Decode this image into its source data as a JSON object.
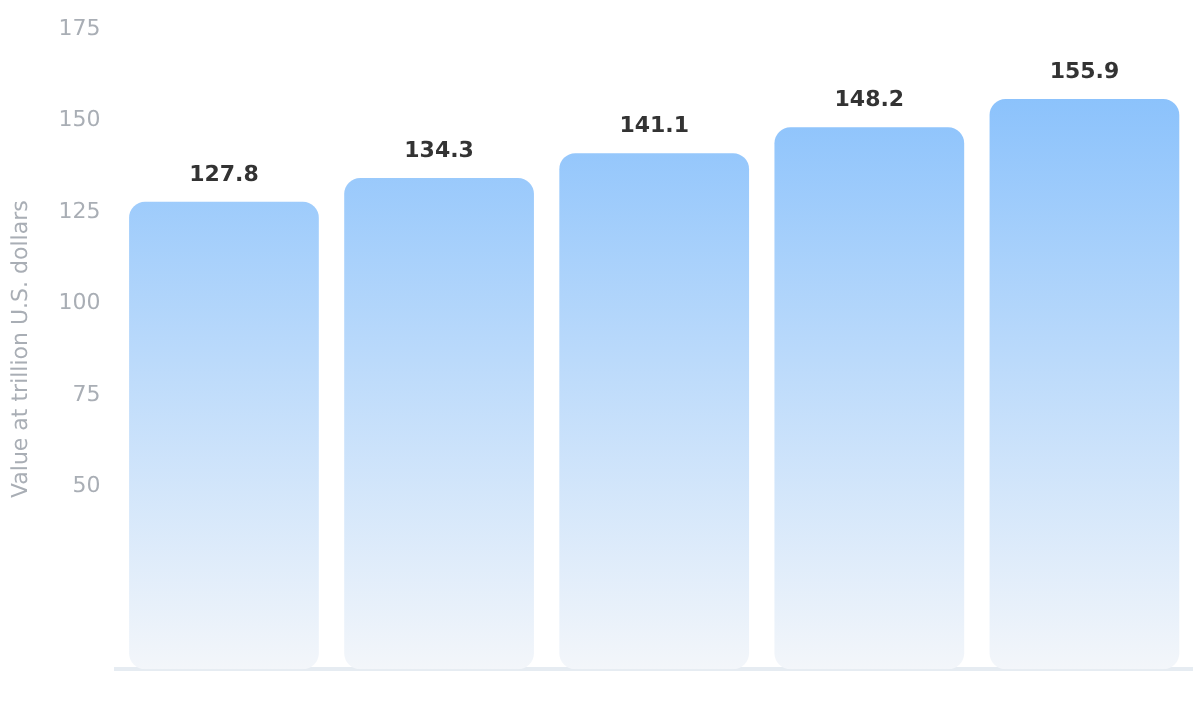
{
  "chart_data": {
    "type": "bar",
    "ylabel": "Value at trillion U.S. dollars",
    "categories": [
      null,
      null,
      null,
      null,
      null
    ],
    "values": [
      127.8,
      134.3,
      141.1,
      148.2,
      155.9
    ],
    "color": "#7fbcfc",
    "ylim": [
      0,
      175
    ],
    "yticks": [
      50,
      75,
      100,
      125,
      150,
      175
    ],
    "data_labels": true,
    "grid": false,
    "legend": false
  }
}
